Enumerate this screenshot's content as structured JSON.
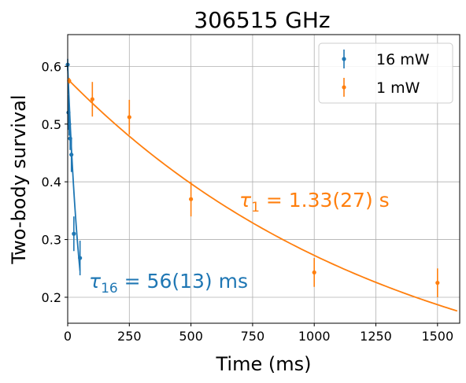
{
  "chart_data": {
    "type": "scatter",
    "title": "306515 GHz",
    "xlabel": "Time (ms)",
    "ylabel": "Two-body survival",
    "xlim": [
      0,
      1590
    ],
    "ylim": [
      0.155,
      0.655
    ],
    "xticks": [
      0,
      250,
      500,
      750,
      1000,
      1250,
      1500
    ],
    "xtick_labels": [
      "0",
      "250",
      "500",
      "750",
      "1000",
      "1250",
      "1500"
    ],
    "yticks": [
      0.2,
      0.3,
      0.4,
      0.5,
      0.6
    ],
    "ytick_labels": [
      "0.2",
      "0.3",
      "0.4",
      "0.5",
      "0.6"
    ],
    "grid": true,
    "legend_position": "top-right",
    "series": [
      {
        "name": "16 mW",
        "color": "#1f77b4",
        "x": [
          0,
          3,
          6,
          10,
          15,
          25,
          50
        ],
        "y": [
          0.603,
          0.52,
          0.5,
          0.475,
          0.447,
          0.31,
          0.268
        ],
        "yerr": [
          0.01,
          0.03,
          0.02,
          0.02,
          0.03,
          0.03,
          0.03
        ],
        "fit": {
          "A": 0.6,
          "tau_ms": 56,
          "x_end": 50
        },
        "annotation_math": "τ",
        "annotation_sub": "16",
        "annotation_rest": " = 56(13) ms"
      },
      {
        "name": "1 mW",
        "color": "#ff7f0e",
        "x": [
          6,
          100,
          250,
          500,
          1000,
          1500
        ],
        "y": [
          0.575,
          0.543,
          0.512,
          0.37,
          0.243,
          0.225
        ],
        "yerr": [
          0.005,
          0.03,
          0.03,
          0.03,
          0.025,
          0.025
        ],
        "fit": {
          "A": 0.578,
          "tau_ms": 1330,
          "x_end": 1580
        },
        "annotation_math": "τ",
        "annotation_sub": "1",
        "annotation_rest": " = 1.33(27) s"
      }
    ]
  }
}
